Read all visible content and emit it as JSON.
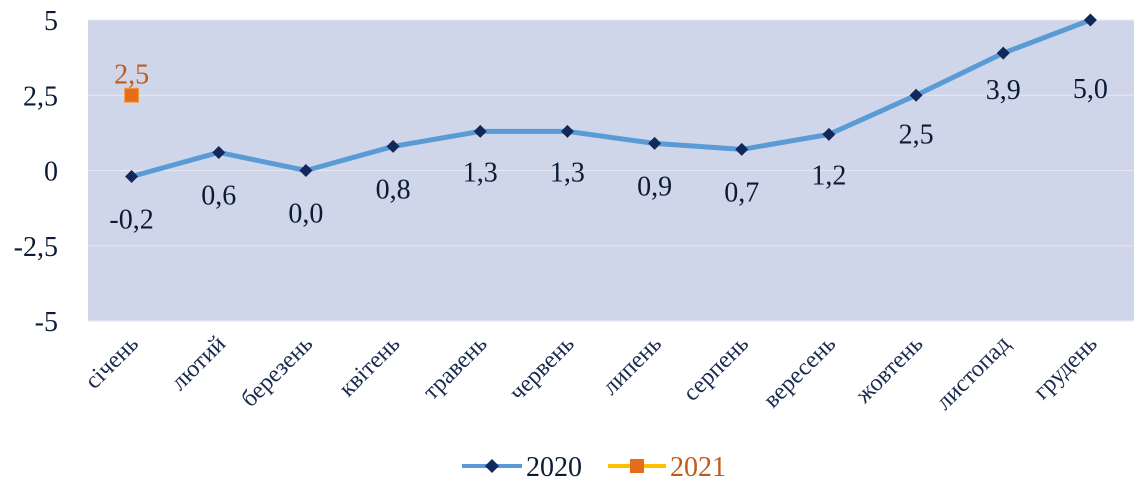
{
  "chart_data": {
    "type": "line",
    "title": "",
    "xlabel": "",
    "ylabel": "",
    "categories": [
      "січень",
      "лютий",
      "березень",
      "квітень",
      "травень",
      "червень",
      "липень",
      "серпень",
      "вересень",
      "жовтень",
      "листопад",
      "грудень"
    ],
    "ylim": [
      -5,
      5
    ],
    "yticks": [
      5,
      2.5,
      0,
      -2.5,
      -5
    ],
    "ytick_labels": [
      "5",
      "2,5",
      "0",
      "-2,5",
      "-5"
    ],
    "grid": true,
    "legend": "bottom",
    "plot_background": "#d0d6ea",
    "series": [
      {
        "name": "2020",
        "color": "#5b9bd5",
        "marker_color": "#12285a",
        "marker": "diamond",
        "values": [
          -0.2,
          0.6,
          0.0,
          0.8,
          1.3,
          1.3,
          0.9,
          0.7,
          1.2,
          2.5,
          3.9,
          5.0
        ],
        "labels": [
          "-0,2",
          "0,6",
          "0,0",
          "0,8",
          "1,3",
          "1,3",
          "0,9",
          "0,7",
          "1,2",
          "2,5",
          "3,9",
          "5,0"
        ]
      },
      {
        "name": "2021",
        "color": "#ffc000",
        "marker_color": "#e46c1a",
        "marker": "square",
        "values": [
          2.5,
          null,
          null,
          null,
          null,
          null,
          null,
          null,
          null,
          null,
          null,
          null
        ],
        "labels": [
          "2,5",
          "",
          "",
          "",
          "",
          "",
          "",
          "",
          "",
          "",
          "",
          ""
        ]
      }
    ]
  }
}
